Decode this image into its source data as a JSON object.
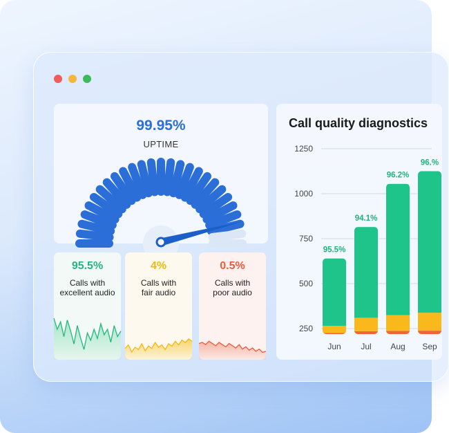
{
  "window": {
    "controls": [
      {
        "name": "close",
        "color": "#f05b5b"
      },
      {
        "name": "minimize",
        "color": "#f5b83d"
      },
      {
        "name": "maximize",
        "color": "#3dbb5c"
      }
    ]
  },
  "uptime": {
    "value": "99.95%",
    "label": "UPTIME",
    "percent": 99.95
  },
  "stats": [
    {
      "value": "95.5%",
      "line1": "Calls with",
      "line2": "excellent audio",
      "color": "#25b67e",
      "fill_top": "#a6e5c8",
      "bg": "#f3f9f6"
    },
    {
      "value": "4%",
      "line1": "Calls with",
      "line2": "fair audio",
      "color": "#f3b716",
      "fill_top": "#f8d56b",
      "bg": "#fdf9ee"
    },
    {
      "value": "0.5%",
      "line1": "Calls with",
      "line2": "poor audio",
      "color": "#ee5a3c",
      "fill_top": "#f6b5a6",
      "bg": "#fdf2f0"
    }
  ],
  "colors": {
    "good": "#1ec48a",
    "fair": "#f9b81c",
    "poor": "#f26337",
    "accent": "#2b6ed8"
  },
  "chart_data": {
    "type": "bar",
    "title": "Call quality diagnostics",
    "categories": [
      "Jun",
      "Jul",
      "Aug",
      "Sep"
    ],
    "ylim": [
      250,
      1250
    ],
    "yticks": [
      250,
      500,
      750,
      1000,
      1250
    ],
    "grid": true,
    "data_labels": [
      "95.5%",
      "94.1%",
      "96.2%",
      "96.%"
    ],
    "series": [
      {
        "values": [
          225,
          235,
          237,
          238
        ]
      },
      {
        "values": [
          265,
          310,
          325,
          338
        ]
      },
      {
        "values": [
          640,
          815,
          1055,
          1125
        ]
      }
    ]
  }
}
